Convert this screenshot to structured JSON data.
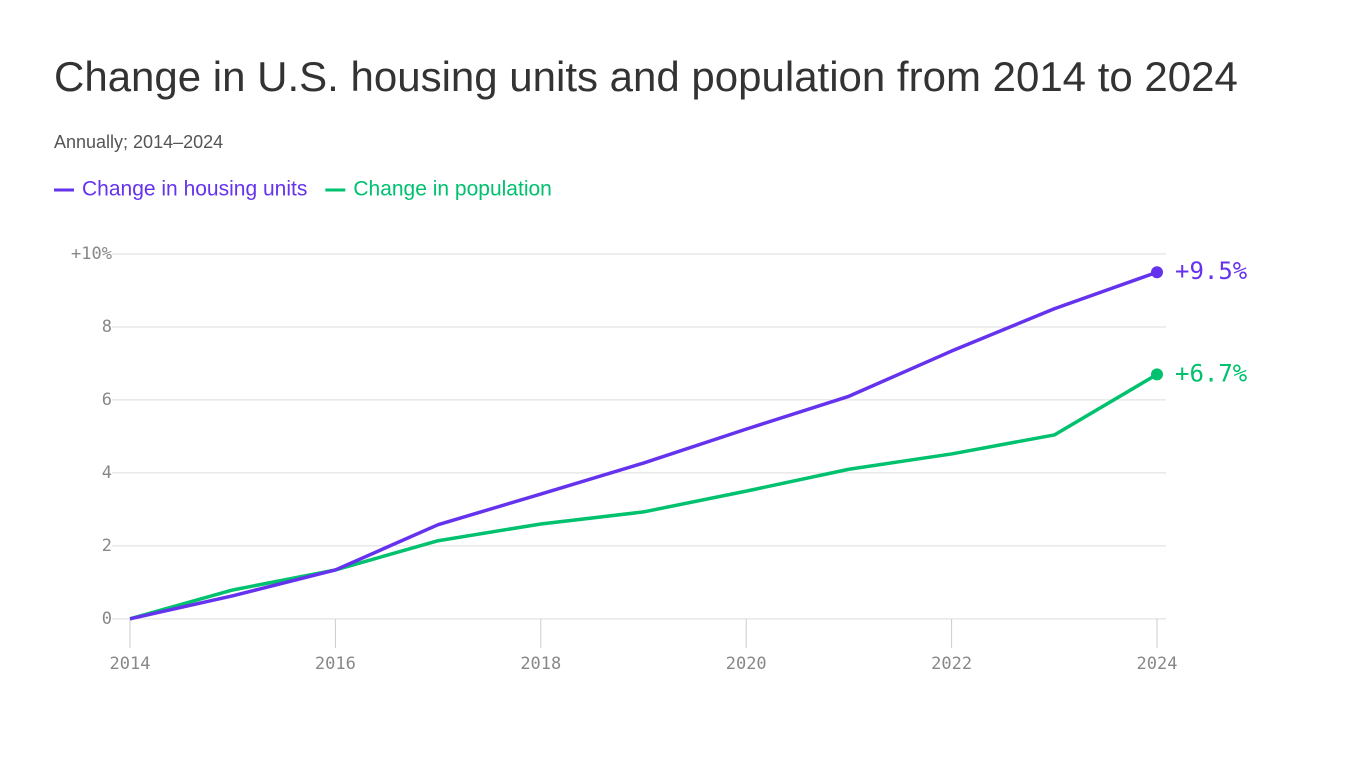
{
  "chart_data": {
    "type": "line",
    "title": "Change in U.S. housing units and population from 2014 to 2024",
    "subtitle": "Annually; 2014–2024",
    "x": [
      2014,
      2015,
      2016,
      2017,
      2018,
      2019,
      2020,
      2021,
      2022,
      2023,
      2024
    ],
    "series": [
      {
        "name": "Change in housing units",
        "color": "#6533ee",
        "values": [
          0,
          0.63,
          1.34,
          2.58,
          3.42,
          4.27,
          5.2,
          6.1,
          7.34,
          8.5,
          9.5
        ],
        "value_labels": [
          null,
          null,
          null,
          null,
          null,
          null,
          null,
          null,
          null,
          null,
          "+9.5%"
        ]
      },
      {
        "name": "Change in population",
        "color": "#00c16e",
        "values": [
          0,
          0.79,
          1.34,
          2.14,
          2.6,
          2.93,
          3.5,
          4.1,
          4.52,
          5.04,
          6.7
        ],
        "value_labels": [
          null,
          null,
          null,
          null,
          null,
          null,
          null,
          null,
          null,
          null,
          "+6.7%"
        ]
      }
    ],
    "xlim": [
      2014,
      2024
    ],
    "xticks": [
      2014,
      2016,
      2018,
      2020,
      2022,
      2024
    ],
    "ylim": [
      -0.8,
      10
    ],
    "yticks": [
      0,
      2,
      4,
      6,
      8,
      {
        "value": 10,
        "label": "+10%"
      }
    ],
    "grid": true
  }
}
